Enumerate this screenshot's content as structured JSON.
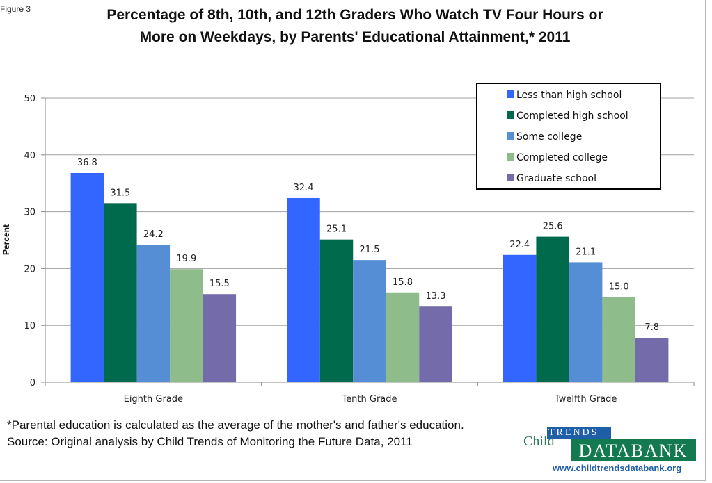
{
  "figure_label": "Figure 3",
  "footnote": {
    "line1": "*Parental education is calculated as the average of the mother's and father's education.",
    "line2": "Source: Original analysis by Child Trends of Monitoring the Future Data, 2011"
  },
  "logo": {
    "child": "Child",
    "trends": "TRENDS",
    "databank": "DATABANK",
    "url": "www.childtrendsdatabank.org"
  },
  "chart_data": {
    "type": "bar",
    "title": "Percentage of 8th, 10th, and 12th Graders Who Watch TV Four Hours or More on Weekdays, by Parents' Educational Attainment,* 2011",
    "title_lines": [
      "Percentage of 8th, 10th, and 12th Graders Who Watch TV Four Hours or",
      "More on Weekdays, by Parents' Educational Attainment,* 2011"
    ],
    "xlabel": "",
    "ylabel": "Percent",
    "ylim": [
      0,
      50
    ],
    "yticks": [
      0,
      10,
      20,
      30,
      40,
      50
    ],
    "grid": true,
    "legend_position": "top-right",
    "categories": [
      "Eighth Grade",
      "Tenth Grade",
      "Twelfth Grade"
    ],
    "series": [
      {
        "name": "Less than high school",
        "color": "#3366ff",
        "values": [
          36.8,
          32.4,
          22.4
        ],
        "labels": [
          "36.8",
          "32.4",
          "22.4"
        ]
      },
      {
        "name": "Completed high school",
        "color": "#006b4c",
        "values": [
          31.5,
          25.1,
          25.6
        ],
        "labels": [
          "31.5",
          "25.1",
          "25.6"
        ]
      },
      {
        "name": "Some college",
        "color": "#558ed5",
        "values": [
          24.2,
          21.5,
          21.1
        ],
        "labels": [
          "24.2",
          "21.5",
          "21.1"
        ]
      },
      {
        "name": "Completed college",
        "color": "#8fbc8b",
        "values": [
          19.9,
          15.8,
          15.0
        ],
        "labels": [
          "19.9",
          "15.8",
          "15.0"
        ]
      },
      {
        "name": "Graduate school",
        "color": "#746bab",
        "values": [
          15.5,
          13.3,
          7.8
        ],
        "labels": [
          "15.5",
          "13.3",
          "7.8"
        ]
      }
    ]
  }
}
